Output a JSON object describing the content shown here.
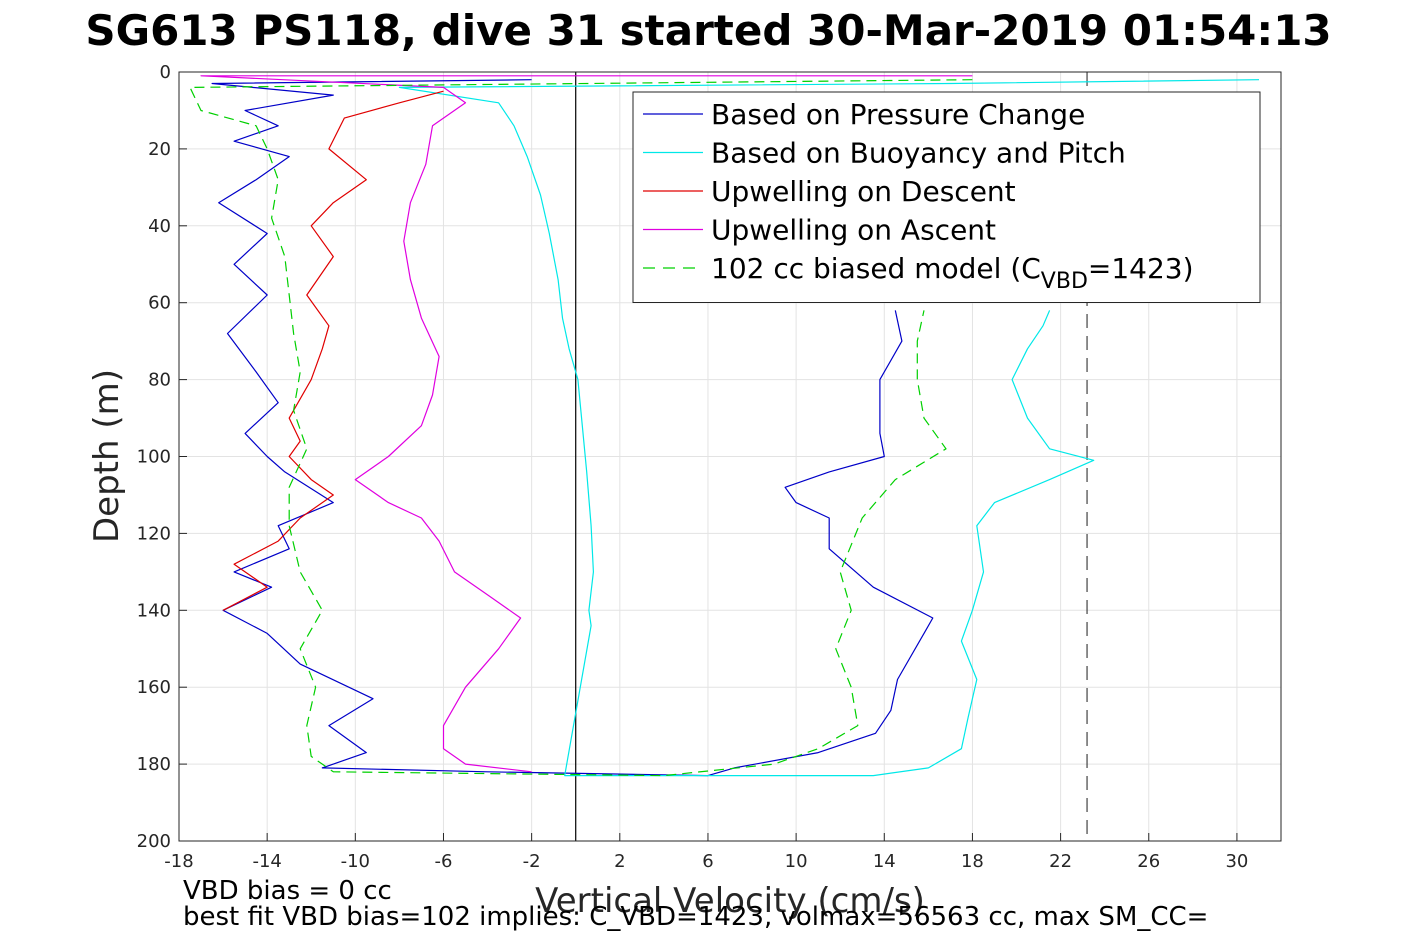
{
  "title": "SG613 PS118, dive 31 started 30-Mar-2019 01:54:13",
  "footer": {
    "line1": "VBD bias = 0 cc",
    "line2": "best fit VBD bias=102 implies: C_VBD=1423, volmax=56563 cc, max SM_CC="
  },
  "chart_data": {
    "type": "line",
    "xlabel": "Vertical Velocity (cm/s)",
    "ylabel": "Depth (m)",
    "xlim": [
      -18,
      32
    ],
    "ylim": [
      200,
      0
    ],
    "xticks": [
      -18,
      -14,
      -10,
      -6,
      -2,
      2,
      6,
      10,
      14,
      18,
      22,
      26,
      30
    ],
    "yticks": [
      0,
      20,
      40,
      60,
      80,
      100,
      120,
      140,
      160,
      180,
      200
    ],
    "grid": true,
    "legend": {
      "position": "top-right",
      "entries": [
        {
          "label": "Based on Pressure Change",
          "color": "#0000c8",
          "style": "solid"
        },
        {
          "label": "Based on Buoyancy and Pitch",
          "color": "#00e8e8",
          "style": "solid"
        },
        {
          "label": "Upwelling on Descent",
          "color": "#e00000",
          "style": "solid"
        },
        {
          "label": "Upwelling on Ascent",
          "color": "#e000e0",
          "style": "solid"
        },
        {
          "label": "102 cc biased model (C",
          "sub": "VBD",
          "tail": "=1423)",
          "color": "#00d000",
          "style": "dashed"
        }
      ]
    },
    "reference_lines": [
      {
        "x": 0,
        "style": "solid",
        "color": "#000000"
      },
      {
        "x": 23.2,
        "style": "dashed",
        "color": "#404040"
      }
    ],
    "series": [
      {
        "name": "Based on Pressure Change",
        "color": "#0000c8",
        "style": "solid",
        "points": [
          [
            -2,
            2
          ],
          [
            -16.5,
            3
          ],
          [
            -11,
            6
          ],
          [
            -15,
            10
          ],
          [
            -13.5,
            14
          ],
          [
            -15.5,
            18
          ],
          [
            -13,
            22
          ],
          [
            -14.5,
            28
          ],
          [
            -16.2,
            34
          ],
          [
            -14,
            42
          ],
          [
            -15.5,
            50
          ],
          [
            -14,
            58
          ],
          [
            -15.8,
            68
          ],
          [
            -14.5,
            78
          ],
          [
            -13.5,
            86
          ],
          [
            -15,
            94
          ],
          [
            -14,
            100
          ],
          [
            -13.2,
            104
          ],
          [
            -11,
            112
          ],
          [
            -13.5,
            118
          ],
          [
            -13,
            124
          ],
          [
            -15.5,
            130
          ],
          [
            -13.8,
            134
          ],
          [
            -16,
            140
          ],
          [
            -14,
            146
          ],
          [
            -12.5,
            154
          ],
          [
            -9.2,
            163
          ],
          [
            -11.2,
            170
          ],
          [
            -9.5,
            177
          ],
          [
            -11.5,
            181
          ],
          [
            -4,
            182
          ],
          [
            6,
            183
          ],
          [
            7.2,
            181
          ],
          [
            11,
            177
          ],
          [
            13.6,
            172
          ],
          [
            14.3,
            166
          ],
          [
            14.6,
            158
          ],
          [
            15.8,
            146
          ],
          [
            16.2,
            142
          ],
          [
            13.5,
            134
          ],
          [
            11.5,
            124
          ],
          [
            11.5,
            116
          ],
          [
            10,
            112
          ],
          [
            9.5,
            108
          ],
          [
            11.5,
            104
          ],
          [
            14,
            100
          ],
          [
            13.8,
            94
          ],
          [
            13.8,
            80
          ],
          [
            14.8,
            70
          ],
          [
            14.5,
            62
          ]
        ]
      },
      {
        "name": "Based on Buoyancy and Pitch",
        "color": "#00e8e8",
        "style": "solid",
        "points": [
          [
            31,
            2
          ],
          [
            17,
            3
          ],
          [
            -8,
            4
          ],
          [
            -3.5,
            8
          ],
          [
            -2.8,
            14
          ],
          [
            -2.2,
            22
          ],
          [
            -1.6,
            32
          ],
          [
            -1.2,
            42
          ],
          [
            -0.8,
            54
          ],
          [
            -0.6,
            64
          ],
          [
            -0.3,
            72
          ],
          [
            0.1,
            80
          ],
          [
            0.3,
            92
          ],
          [
            0.5,
            104
          ],
          [
            0.7,
            118
          ],
          [
            0.8,
            130
          ],
          [
            0.6,
            140
          ],
          [
            0.7,
            144
          ],
          [
            -0.5,
            183
          ],
          [
            13.5,
            183
          ],
          [
            16,
            181
          ],
          [
            17.5,
            176
          ],
          [
            17.8,
            168
          ],
          [
            18.2,
            158
          ],
          [
            17.5,
            148
          ],
          [
            18,
            140
          ],
          [
            18.5,
            130
          ],
          [
            18.2,
            118
          ],
          [
            19,
            112
          ],
          [
            21.5,
            106
          ],
          [
            23.5,
            101
          ],
          [
            21.5,
            98
          ],
          [
            20.5,
            90
          ],
          [
            19.8,
            80
          ],
          [
            20.5,
            72
          ],
          [
            21.2,
            66
          ],
          [
            21.5,
            62
          ]
        ]
      },
      {
        "name": "Upwelling on Descent",
        "color": "#e00000",
        "style": "solid",
        "points": [
          [
            -6,
            5
          ],
          [
            -8,
            8
          ],
          [
            -10.5,
            12
          ],
          [
            -11.2,
            20
          ],
          [
            -9.5,
            28
          ],
          [
            -11,
            34
          ],
          [
            -12,
            40
          ],
          [
            -11,
            48
          ],
          [
            -12.2,
            58
          ],
          [
            -11.2,
            66
          ],
          [
            -11.5,
            72
          ],
          [
            -12,
            80
          ],
          [
            -13,
            90
          ],
          [
            -12.5,
            96
          ],
          [
            -13,
            100
          ],
          [
            -12,
            106
          ],
          [
            -11,
            110
          ],
          [
            -12.5,
            116
          ],
          [
            -13.5,
            122
          ],
          [
            -15.5,
            128
          ],
          [
            -14,
            134
          ],
          [
            -16,
            140
          ]
        ]
      },
      {
        "name": "Upwelling on Ascent",
        "color": "#e000e0",
        "style": "solid",
        "points": [
          [
            18,
            1
          ],
          [
            -17,
            1
          ],
          [
            -6,
            4
          ],
          [
            -5,
            8
          ],
          [
            -6.5,
            14
          ],
          [
            -6.8,
            24
          ],
          [
            -7.5,
            34
          ],
          [
            -7.8,
            44
          ],
          [
            -7.5,
            54
          ],
          [
            -7,
            64
          ],
          [
            -6.2,
            74
          ],
          [
            -6.5,
            84
          ],
          [
            -7,
            92
          ],
          [
            -8.5,
            100
          ],
          [
            -10,
            106
          ],
          [
            -8.5,
            112
          ],
          [
            -7,
            116
          ],
          [
            -6.2,
            122
          ],
          [
            -5.5,
            130
          ],
          [
            -4,
            136
          ],
          [
            -2.5,
            142
          ],
          [
            -3.5,
            150
          ],
          [
            -5,
            160
          ],
          [
            -6,
            170
          ],
          [
            -6,
            176
          ],
          [
            -5,
            180
          ],
          [
            -2,
            182
          ]
        ]
      },
      {
        "name": "102 cc biased model (CVBD=1423)",
        "color": "#00d000",
        "style": "dashed",
        "points": [
          [
            18,
            2
          ],
          [
            -17.5,
            4
          ],
          [
            -17,
            10
          ],
          [
            -14.5,
            14
          ],
          [
            -14,
            20
          ],
          [
            -13.5,
            28
          ],
          [
            -13.8,
            38
          ],
          [
            -13.2,
            48
          ],
          [
            -13,
            58
          ],
          [
            -12.8,
            68
          ],
          [
            -12.5,
            78
          ],
          [
            -12.8,
            88
          ],
          [
            -12.2,
            98
          ],
          [
            -13,
            108
          ],
          [
            -13,
            118
          ],
          [
            -12.5,
            130
          ],
          [
            -11.5,
            140
          ],
          [
            -12.5,
            150
          ],
          [
            -11.8,
            160
          ],
          [
            -12.2,
            170
          ],
          [
            -12,
            178
          ],
          [
            -11,
            182
          ],
          [
            4,
            183
          ],
          [
            9,
            180
          ],
          [
            11,
            176
          ],
          [
            12.8,
            170
          ],
          [
            12.5,
            160
          ],
          [
            11.8,
            150
          ],
          [
            12.5,
            140
          ],
          [
            12,
            130
          ],
          [
            13,
            116
          ],
          [
            14.5,
            106
          ],
          [
            16.8,
            98
          ],
          [
            15.8,
            90
          ],
          [
            15.5,
            80
          ],
          [
            15.5,
            70
          ],
          [
            15.8,
            62
          ]
        ]
      }
    ]
  }
}
